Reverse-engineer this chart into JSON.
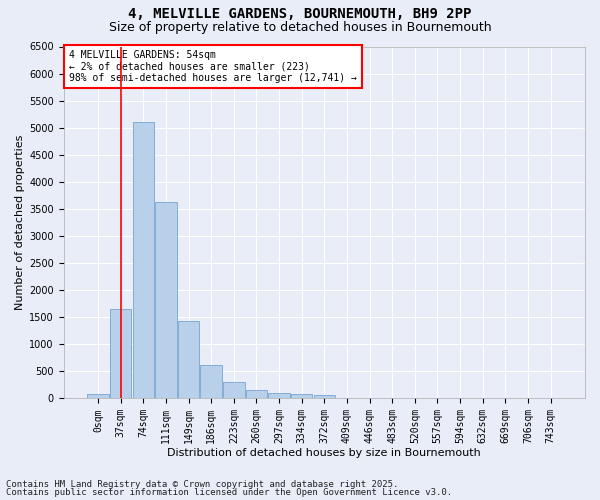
{
  "title_line1": "4, MELVILLE GARDENS, BOURNEMOUTH, BH9 2PP",
  "title_line2": "Size of property relative to detached houses in Bournemouth",
  "xlabel": "Distribution of detached houses by size in Bournemouth",
  "ylabel": "Number of detached properties",
  "footer_line1": "Contains HM Land Registry data © Crown copyright and database right 2025.",
  "footer_line2": "Contains public sector information licensed under the Open Government Licence v3.0.",
  "annotation_line1": "4 MELVILLE GARDENS: 54sqm",
  "annotation_line2": "← 2% of detached houses are smaller (223)",
  "annotation_line3": "98% of semi-detached houses are larger (12,741) →",
  "bar_labels": [
    "0sqm",
    "37sqm",
    "74sqm",
    "111sqm",
    "149sqm",
    "186sqm",
    "223sqm",
    "260sqm",
    "297sqm",
    "334sqm",
    "372sqm",
    "409sqm",
    "446sqm",
    "483sqm",
    "520sqm",
    "557sqm",
    "594sqm",
    "632sqm",
    "669sqm",
    "706sqm",
    "743sqm"
  ],
  "bar_values": [
    75,
    1650,
    5100,
    3620,
    1430,
    620,
    310,
    150,
    100,
    80,
    55,
    0,
    0,
    0,
    0,
    0,
    0,
    0,
    0,
    0,
    0
  ],
  "bar_color": "#b8d0ea",
  "bar_edge_color": "#6699cc",
  "red_line_x": 1.0,
  "ylim": [
    0,
    6500
  ],
  "yticks": [
    0,
    500,
    1000,
    1500,
    2000,
    2500,
    3000,
    3500,
    4000,
    4500,
    5000,
    5500,
    6000,
    6500
  ],
  "plot_bg_color": "#e8edf8",
  "fig_bg_color": "#e8edf8",
  "grid_color": "#ffffff",
  "title_fontsize": 10,
  "subtitle_fontsize": 9,
  "axis_label_fontsize": 8,
  "tick_fontsize": 7,
  "annot_fontsize": 7,
  "footer_fontsize": 6.5
}
